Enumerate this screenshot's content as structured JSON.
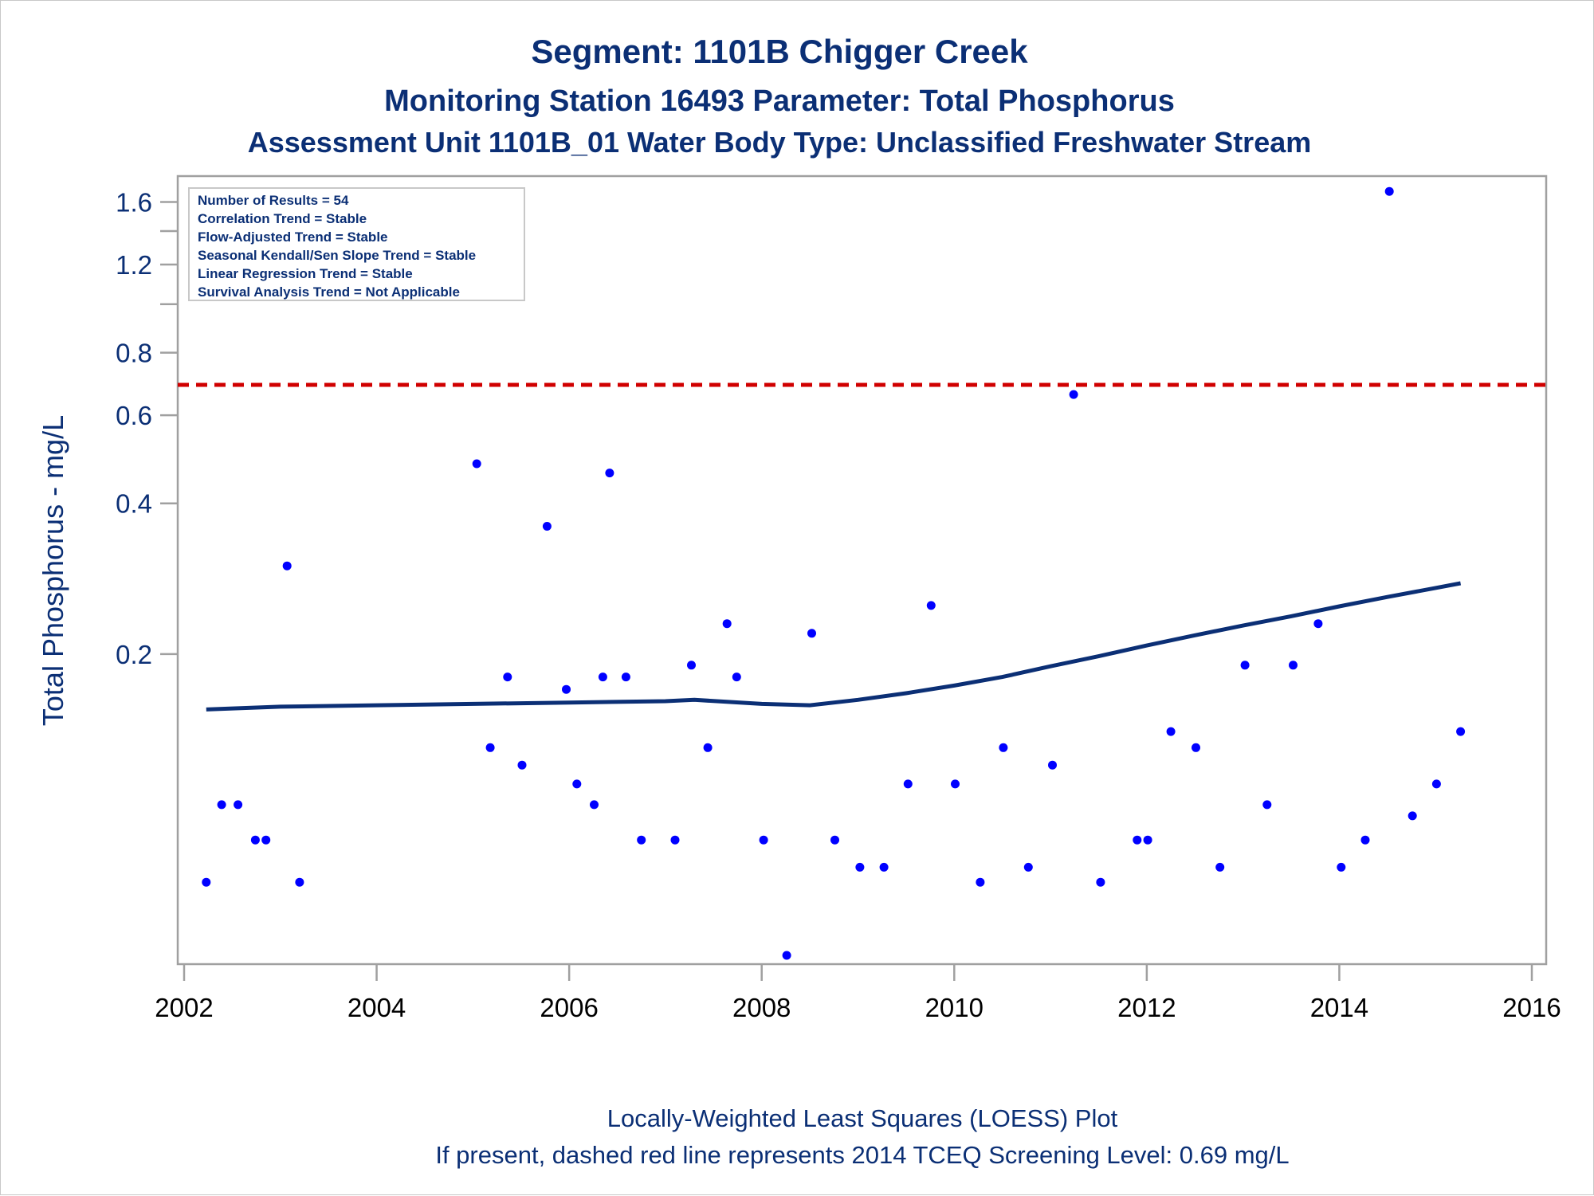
{
  "colors": {
    "text": "#0b2f75",
    "points": "#0000ff",
    "loess": "#0b2f75",
    "screening_line": "#d00000",
    "frame": "#a0a0a0"
  },
  "chart_data": {
    "type": "scatter",
    "title": "Segment: 1101B  Chigger Creek",
    "subtitle": "Monitoring Station 16493 Parameter: Total Phosphorus",
    "subtitle2": "Assessment Unit 1101B_01   Water Body Type: Unclassified Freshwater Stream",
    "xlabel": "",
    "ylabel": "Total Phosphorus - mg/L",
    "yscale": "log",
    "xlim": [
      2002,
      2016
    ],
    "ylim": [
      0.05,
      1.7
    ],
    "x_ticks": [
      "2002",
      "2004",
      "2006",
      "2008",
      "2010",
      "2012",
      "2014",
      "2016"
    ],
    "y_ticks": [
      "0.2",
      "0.4",
      "0.6",
      "0.8",
      "1.2",
      "1.6"
    ],
    "y_tick_values": [
      0.2,
      0.4,
      0.6,
      0.8,
      1.2,
      1.6
    ],
    "y_minor_ticks": [
      1.0,
      1.4
    ],
    "grid": false,
    "stats_box": [
      "Number of Results = 54",
      "Correlation Trend = Stable",
      "Flow-Adjusted Trend = Stable",
      "Seasonal Kendall/Sen Slope Trend = Stable",
      "Linear Regression Trend = Stable",
      "Survival Analysis Trend = Not Applicable"
    ],
    "screening_level": 0.69,
    "points": [
      [
        2002.23,
        0.07
      ],
      [
        2002.39,
        0.1
      ],
      [
        2002.56,
        0.1
      ],
      [
        2002.74,
        0.085
      ],
      [
        2002.85,
        0.085
      ],
      [
        2003.07,
        0.3
      ],
      [
        2003.2,
        0.07
      ],
      [
        2005.04,
        0.48
      ],
      [
        2005.18,
        0.13
      ],
      [
        2005.36,
        0.18
      ],
      [
        2005.51,
        0.12
      ],
      [
        2005.77,
        0.36
      ],
      [
        2005.97,
        0.17
      ],
      [
        2006.08,
        0.11
      ],
      [
        2006.26,
        0.1
      ],
      [
        2006.35,
        0.18
      ],
      [
        2006.42,
        0.46
      ],
      [
        2006.59,
        0.18
      ],
      [
        2006.75,
        0.085
      ],
      [
        2007.1,
        0.085
      ],
      [
        2007.27,
        0.19
      ],
      [
        2007.44,
        0.13
      ],
      [
        2007.64,
        0.23
      ],
      [
        2007.74,
        0.18
      ],
      [
        2008.02,
        0.085
      ],
      [
        2008.26,
        0.05
      ],
      [
        2008.52,
        0.22
      ],
      [
        2008.76,
        0.085
      ],
      [
        2009.02,
        0.075
      ],
      [
        2009.27,
        0.075
      ],
      [
        2009.52,
        0.11
      ],
      [
        2009.76,
        0.25
      ],
      [
        2010.01,
        0.11
      ],
      [
        2010.27,
        0.07
      ],
      [
        2010.51,
        0.13
      ],
      [
        2010.77,
        0.075
      ],
      [
        2011.02,
        0.12
      ],
      [
        2011.24,
        0.66
      ],
      [
        2011.52,
        0.07
      ],
      [
        2011.9,
        0.085
      ],
      [
        2012.01,
        0.085
      ],
      [
        2012.25,
        0.14
      ],
      [
        2012.51,
        0.13
      ],
      [
        2012.76,
        0.075
      ],
      [
        2013.02,
        0.19
      ],
      [
        2013.25,
        0.1
      ],
      [
        2013.52,
        0.19
      ],
      [
        2013.78,
        0.23
      ],
      [
        2014.02,
        0.075
      ],
      [
        2014.27,
        0.085
      ],
      [
        2014.52,
        1.68
      ],
      [
        2014.76,
        0.095
      ],
      [
        2015.01,
        0.11
      ],
      [
        2015.26,
        0.14
      ]
    ],
    "loess": {
      "x": [
        2002.23,
        2003.0,
        2004.0,
        2005.0,
        2006.0,
        2007.0,
        2007.3,
        2008.0,
        2008.5,
        2009.0,
        2009.5,
        2010.0,
        2010.5,
        2011.0,
        2011.5,
        2012.0,
        2012.5,
        2013.0,
        2013.5,
        2014.0,
        2014.5,
        2015.0,
        2015.26
      ],
      "y": [
        0.155,
        0.157,
        0.158,
        0.159,
        0.16,
        0.161,
        0.162,
        0.159,
        0.158,
        0.162,
        0.167,
        0.173,
        0.18,
        0.189,
        0.198,
        0.208,
        0.218,
        0.228,
        0.238,
        0.249,
        0.26,
        0.271,
        0.277
      ]
    },
    "footnotes": [
      "Locally-Weighted Least Squares (LOESS) Plot",
      "If present, dashed red line represents 2014 TCEQ Screening Level: 0.69 mg/L"
    ]
  }
}
